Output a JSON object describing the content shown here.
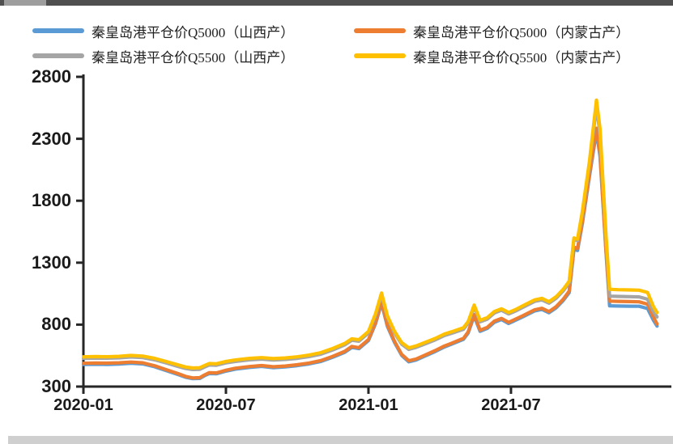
{
  "frame": {
    "top_bar_color": "#4f4f4f",
    "top_tab_color": "#9e9e9e",
    "bottom_bar_color": "#cfcfcf"
  },
  "legend": {
    "items": [
      {
        "label": "秦皇岛港平仓价Q5000（山西产）",
        "color": "#5B9BD5"
      },
      {
        "label": "秦皇岛港平仓价Q5000（内蒙古产）",
        "color": "#ED7D31"
      },
      {
        "label": "秦皇岛港平仓价Q5500（山西产）",
        "color": "#A5A5A5"
      },
      {
        "label": "秦皇岛港平仓价Q5500（内蒙古产）",
        "color": "#FFC000"
      }
    ]
  },
  "chart_data": {
    "type": "line",
    "title": "",
    "xlabel": "",
    "ylabel": "",
    "x_unit": "months_since_2020-01",
    "ylim": [
      300,
      2800
    ],
    "y_ticks": [
      2800,
      2300,
      1800,
      1300,
      800,
      300
    ],
    "x_ticks": [
      {
        "label": "2020-01",
        "m": 0
      },
      {
        "label": "2020-07",
        "m": 6
      },
      {
        "label": "2021-01",
        "m": 12
      },
      {
        "label": "2021-07",
        "m": 18
      }
    ],
    "grid": false,
    "legend_position": "top",
    "axis_color": "#262626",
    "x": [
      0,
      0.5,
      1,
      1.5,
      2,
      2.5,
      3,
      3.5,
      4,
      4.3,
      4.6,
      4.9,
      5.1,
      5.3,
      5.6,
      6,
      6.4,
      7,
      7.5,
      8,
      8.5,
      9,
      9.5,
      10,
      10.5,
      11,
      11.3,
      11.6,
      12,
      12.3,
      12.55,
      12.8,
      13.1,
      13.4,
      13.7,
      14,
      14.4,
      14.8,
      15.2,
      15.5,
      16,
      16.2,
      16.45,
      16.7,
      17,
      17.3,
      17.6,
      17.9,
      18.2,
      18.5,
      19,
      19.3,
      19.6,
      19.9,
      20.2,
      20.45,
      20.65,
      20.8,
      21,
      21.3,
      21.6,
      21.75,
      22,
      22.15,
      22.5,
      23,
      23.4,
      23.75,
      24,
      24.15
    ],
    "series": [
      {
        "name": "秦皇岛港平仓价Q5000（山西产）",
        "color": "#5B9BD5",
        "values": [
          478,
          480,
          479,
          482,
          488,
          483,
          460,
          428,
          396,
          376,
          364,
          366,
          388,
          405,
          403,
          425,
          441,
          455,
          463,
          453,
          459,
          469,
          483,
          503,
          537,
          576,
          616,
          606,
          672,
          810,
          972,
          785,
          656,
          552,
          500,
          514,
          548,
          582,
          620,
          642,
          682,
          733,
          870,
          746,
          769,
          819,
          841,
          809,
          836,
          863,
          911,
          923,
          896,
          936,
          995,
          1058,
          1408,
          1398,
          1610,
          1990,
          2360,
          2158,
          1385,
          952,
          950,
          949,
          948,
          930,
          835,
          788
        ]
      },
      {
        "name": "秦皇岛港平仓价Q5000（内蒙古产）",
        "color": "#ED7D31",
        "values": [
          488,
          490,
          489,
          492,
          498,
          492,
          468,
          436,
          404,
          382,
          370,
          372,
          394,
          412,
          410,
          432,
          448,
          462,
          470,
          460,
          466,
          476,
          490,
          510,
          544,
          584,
          624,
          614,
          680,
          820,
          985,
          795,
          665,
          560,
          508,
          522,
          556,
          590,
          628,
          650,
          690,
          742,
          882,
          755,
          778,
          828,
          850,
          818,
          845,
          872,
          920,
          932,
          905,
          945,
          1005,
          1070,
          1425,
          1415,
          1628,
          2010,
          2385,
          2180,
          1400,
          990,
          988,
          986,
          984,
          965,
          860,
          805
        ]
      },
      {
        "name": "秦皇岛港平仓价Q5500（山西产）",
        "color": "#A5A5A5",
        "values": [
          528,
          530,
          529,
          532,
          539,
          534,
          516,
          490,
          462,
          446,
          438,
          440,
          458,
          474,
          472,
          491,
          503,
          516,
          522,
          514,
          519,
          528,
          542,
          562,
          596,
          636,
          674,
          666,
          733,
          878,
          1040,
          858,
          733,
          643,
          600,
          616,
          646,
          676,
          712,
          730,
          763,
          813,
          945,
          823,
          844,
          894,
          916,
          886,
          910,
          940,
          988,
          1000,
          973,
          1013,
          1073,
          1138,
          1488,
          1478,
          1692,
          2095,
          2560,
          2340,
          1500,
          1030,
          1028,
          1026,
          1024,
          1005,
          905,
          862
        ]
      },
      {
        "name": "秦皇岛港平仓价Q5500（内蒙古产）",
        "color": "#FFC000",
        "values": [
          540,
          542,
          541,
          544,
          551,
          546,
          528,
          502,
          474,
          458,
          450,
          452,
          470,
          486,
          484,
          503,
          515,
          528,
          534,
          526,
          531,
          540,
          554,
          574,
          608,
          648,
          686,
          678,
          745,
          890,
          1055,
          870,
          745,
          655,
          612,
          628,
          658,
          688,
          724,
          742,
          775,
          825,
          958,
          835,
          856,
          906,
          928,
          898,
          922,
          952,
          1000,
          1012,
          985,
          1025,
          1085,
          1150,
          1500,
          1490,
          1705,
          2110,
          2612,
          2380,
          1520,
          1085,
          1082,
          1080,
          1078,
          1060,
          945,
          898
        ]
      }
    ]
  }
}
